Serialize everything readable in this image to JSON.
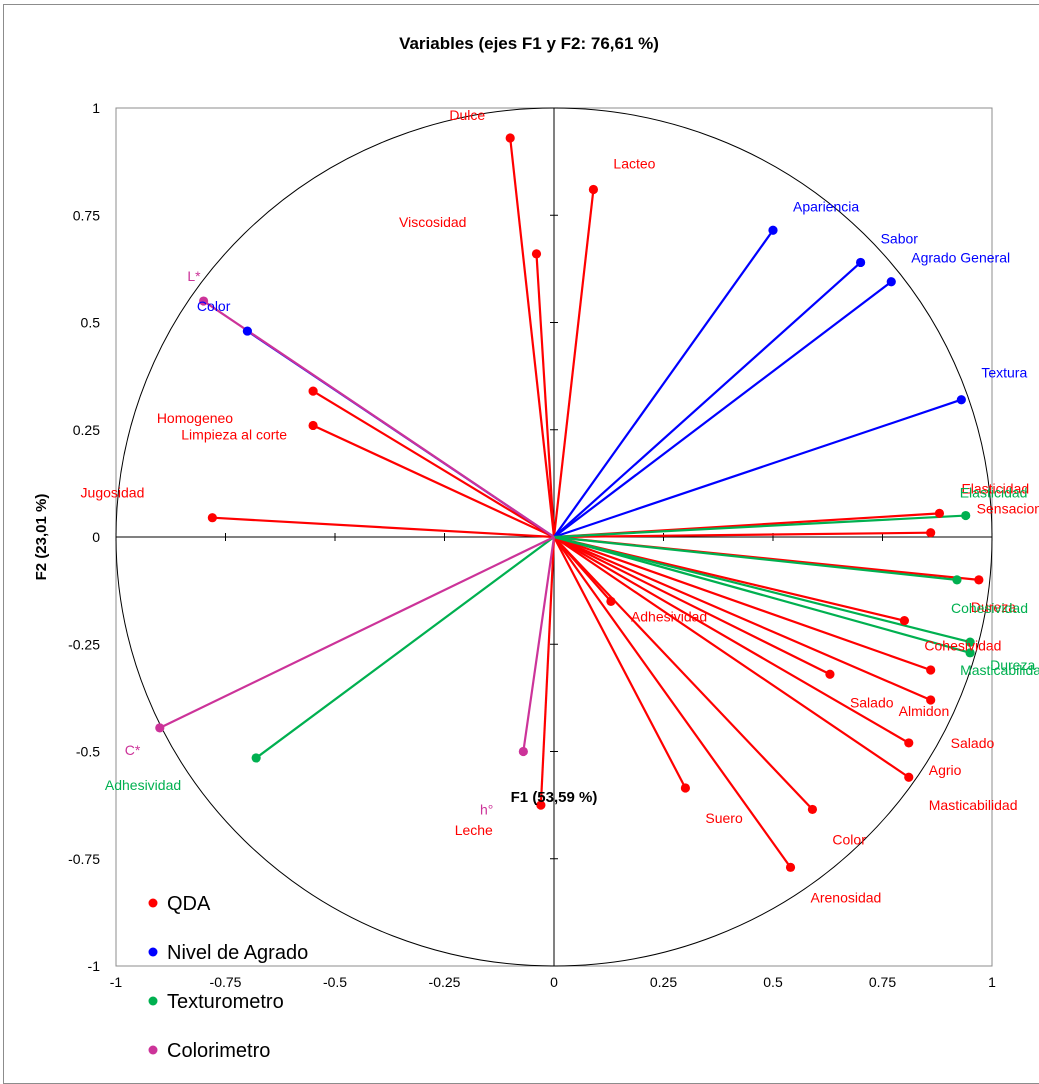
{
  "chart_data": {
    "type": "scatter",
    "title": "Variables (ejes F1 y F2: 76,61 %)",
    "xlabel": "F1 (53,59 %)",
    "ylabel": "F2 (23,01 %)",
    "xlim": [
      -1,
      1
    ],
    "ylim": [
      -1,
      1
    ],
    "x_ticks": [
      "-1",
      "-0.75",
      "-0.5",
      "-0.25",
      "0",
      "0.25",
      "0.5",
      "0.75",
      "1"
    ],
    "y_ticks": [
      "1",
      "0.75",
      "0.5",
      "0.25",
      "0",
      "-0.25",
      "-0.5",
      "-0.75",
      "-1"
    ],
    "legend_position": "bottom-left",
    "series": [
      {
        "name": "QDA",
        "color": "#ff0000",
        "points": [
          {
            "label": "Dulce",
            "x": -0.1,
            "y": 0.93
          },
          {
            "label": "Lacteo",
            "x": 0.09,
            "y": 0.81
          },
          {
            "label": "Viscosidad",
            "x": -0.04,
            "y": 0.66
          },
          {
            "label": "Homogeneo",
            "x": -0.55,
            "y": 0.34
          },
          {
            "label": "Limpieza al corte",
            "x": -0.55,
            "y": 0.26
          },
          {
            "label": "Jugosidad",
            "x": -0.78,
            "y": 0.045
          },
          {
            "label": "Elasticidad",
            "x": 0.88,
            "y": 0.055
          },
          {
            "label": "Sensacion plastica",
            "x": 0.86,
            "y": 0.01
          },
          {
            "label": "Dureza",
            "x": 0.97,
            "y": -0.1
          },
          {
            "label": "Cohesividad",
            "x": 0.8,
            "y": -0.195
          },
          {
            "label": "Almidon",
            "x": 0.86,
            "y": -0.31
          },
          {
            "label": "Salado",
            "x": 0.63,
            "y": -0.32
          },
          {
            "label": "Salado",
            "x": 0.86,
            "y": -0.38
          },
          {
            "label": "Agrio",
            "x": 0.81,
            "y": -0.48
          },
          {
            "label": "Masticabilidad",
            "x": 0.81,
            "y": -0.56
          },
          {
            "label": "Adhesividad",
            "x": 0.13,
            "y": -0.15
          },
          {
            "label": "Suero",
            "x": 0.3,
            "y": -0.585
          },
          {
            "label": "Color",
            "x": 0.59,
            "y": -0.635
          },
          {
            "label": "Arenosidad",
            "x": 0.54,
            "y": -0.77
          },
          {
            "label": "Leche",
            "x": -0.03,
            "y": -0.625
          }
        ]
      },
      {
        "name": "Nivel de Agrado",
        "color": "#0000ff",
        "points": [
          {
            "label": "Apariencia",
            "x": 0.5,
            "y": 0.715
          },
          {
            "label": "Sabor",
            "x": 0.7,
            "y": 0.64
          },
          {
            "label": "Agrado General",
            "x": 0.77,
            "y": 0.595
          },
          {
            "label": "Textura",
            "x": 0.93,
            "y": 0.32
          },
          {
            "label": "Color",
            "x": -0.7,
            "y": 0.48
          }
        ]
      },
      {
        "name": "Texturometro",
        "color": "#00b050",
        "points": [
          {
            "label": "Elasticidad",
            "x": 0.94,
            "y": 0.05
          },
          {
            "label": "Cohesividad",
            "x": 0.92,
            "y": -0.1
          },
          {
            "label": "Masticabilidad",
            "x": 0.95,
            "y": -0.245
          },
          {
            "label": "Dureza",
            "x": 0.95,
            "y": -0.27
          },
          {
            "label": "Adhesividad",
            "x": -0.68,
            "y": -0.515
          }
        ]
      },
      {
        "name": "Colorimetro",
        "color": "#cc3399",
        "points": [
          {
            "label": "L*",
            "x": -0.8,
            "y": 0.55
          },
          {
            "label": "C*",
            "x": -0.9,
            "y": -0.445
          },
          {
            "label": "h°",
            "x": -0.07,
            "y": -0.5
          }
        ]
      }
    ],
    "point_labels": [
      {
        "text": "Dulce",
        "series": 0
      },
      {
        "text": "Lacteo",
        "series": 0
      },
      {
        "text": "Viscosidad",
        "series": 0
      },
      {
        "text": "Homogeneo",
        "series": 0
      },
      {
        "text": "Limpieza al corte",
        "series": 0
      },
      {
        "text": "Jugosidad",
        "series": 0
      },
      {
        "text": "Elasticidad",
        "series": 0
      },
      {
        "text": "Sensacion plastica",
        "series": 0
      },
      {
        "text": "Dureza",
        "series": 0
      },
      {
        "text": "Cohesividad",
        "series": 0
      },
      {
        "text": "Almidon",
        "series": 0
      },
      {
        "text": "Salado",
        "series": 0
      },
      {
        "text": "Salado",
        "series": 0
      },
      {
        "text": "Agrio",
        "series": 0
      },
      {
        "text": "Masticabilidad",
        "series": 0
      },
      {
        "text": "Adhesividad",
        "series": 0
      },
      {
        "text": "Suero",
        "series": 0
      },
      {
        "text": "Color",
        "series": 0
      },
      {
        "text": "Arenosidad",
        "series": 0
      },
      {
        "text": "Leche",
        "series": 0
      },
      {
        "text": "Apariencia",
        "series": 1
      },
      {
        "text": "Sabor",
        "series": 1
      },
      {
        "text": "Agrado General",
        "series": 1
      },
      {
        "text": "Textura",
        "series": 1
      },
      {
        "text": "Color",
        "series": 1
      },
      {
        "text": "Elasticidad",
        "series": 2
      },
      {
        "text": "Cohesividad",
        "series": 2
      },
      {
        "text": "Masticabilidad",
        "series": 2
      },
      {
        "text": "Dureza",
        "series": 2
      },
      {
        "text": "Adhesividad",
        "series": 2
      },
      {
        "text": "L*",
        "series": 3
      },
      {
        "text": "C*",
        "series": 3
      },
      {
        "text": "h°",
        "series": 3
      }
    ]
  }
}
